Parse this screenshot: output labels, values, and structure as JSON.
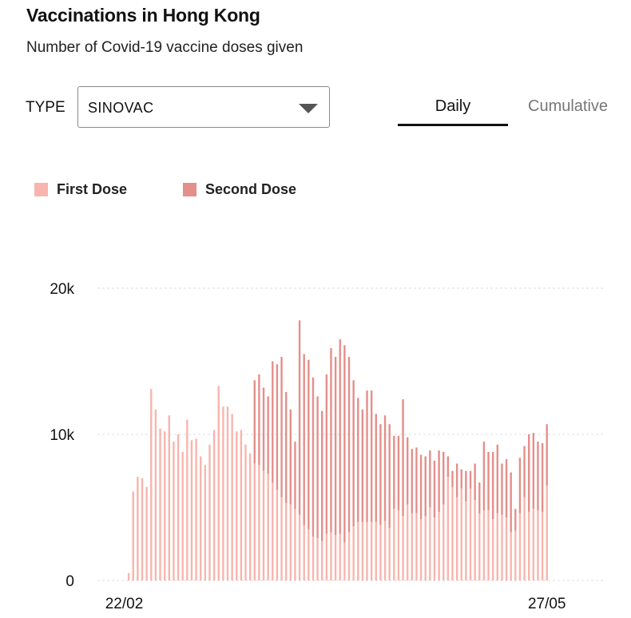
{
  "header": {
    "title": "Vaccinations in Hong Kong",
    "subtitle": "Number of Covid-19 vaccine doses given"
  },
  "filter": {
    "type_label": "TYPE",
    "selected": "SINOVAC"
  },
  "tabs": [
    {
      "label": "Daily",
      "active": true
    },
    {
      "label": "Cumulative",
      "active": false
    }
  ],
  "colors": {
    "first_dose": "#f8b5ad",
    "second_dose": "#e48f8a",
    "grid": "#dddddd"
  },
  "chart_data": {
    "type": "bar",
    "stacked": true,
    "title": "",
    "xlabel": "",
    "ylabel": "",
    "ylim": [
      0,
      20000
    ],
    "yticks": [
      0,
      10000,
      20000
    ],
    "ytick_labels": [
      "0",
      "10k",
      "20k"
    ],
    "x_tick_labels": [
      {
        "label": "22/02",
        "date": "2021-02-22"
      },
      {
        "label": "27/05",
        "date": "2021-05-27"
      }
    ],
    "grid": true,
    "legend_position": "top-left",
    "x": [
      "2021-02-22",
      "2021-02-23",
      "2021-02-24",
      "2021-02-25",
      "2021-02-26",
      "2021-02-27",
      "2021-02-28",
      "2021-03-01",
      "2021-03-02",
      "2021-03-03",
      "2021-03-04",
      "2021-03-05",
      "2021-03-06",
      "2021-03-07",
      "2021-03-08",
      "2021-03-09",
      "2021-03-10",
      "2021-03-11",
      "2021-03-12",
      "2021-03-13",
      "2021-03-14",
      "2021-03-15",
      "2021-03-16",
      "2021-03-17",
      "2021-03-18",
      "2021-03-19",
      "2021-03-20",
      "2021-03-21",
      "2021-03-22",
      "2021-03-23",
      "2021-03-24",
      "2021-03-25",
      "2021-03-26",
      "2021-03-27",
      "2021-03-28",
      "2021-03-29",
      "2021-03-30",
      "2021-03-31",
      "2021-04-01",
      "2021-04-02",
      "2021-04-03",
      "2021-04-04",
      "2021-04-05",
      "2021-04-06",
      "2021-04-07",
      "2021-04-08",
      "2021-04-09",
      "2021-04-10",
      "2021-04-11",
      "2021-04-12",
      "2021-04-13",
      "2021-04-14",
      "2021-04-15",
      "2021-04-16",
      "2021-04-17",
      "2021-04-18",
      "2021-04-19",
      "2021-04-20",
      "2021-04-21",
      "2021-04-22",
      "2021-04-23",
      "2021-04-24",
      "2021-04-25",
      "2021-04-26",
      "2021-04-27",
      "2021-04-28",
      "2021-04-29",
      "2021-04-30",
      "2021-05-01",
      "2021-05-02",
      "2021-05-03",
      "2021-05-04",
      "2021-05-05",
      "2021-05-06",
      "2021-05-07",
      "2021-05-08",
      "2021-05-09",
      "2021-05-10",
      "2021-05-11",
      "2021-05-12",
      "2021-05-13",
      "2021-05-14",
      "2021-05-15",
      "2021-05-16",
      "2021-05-17",
      "2021-05-18",
      "2021-05-19",
      "2021-05-20",
      "2021-05-21",
      "2021-05-22",
      "2021-05-23",
      "2021-05-24",
      "2021-05-25",
      "2021-05-26",
      "2021-05-27"
    ],
    "series": [
      {
        "name": "First Dose",
        "values": [
          0,
          500,
          6100,
          7100,
          7000,
          6400,
          13100,
          11700,
          10400,
          10200,
          11300,
          9500,
          10000,
          8800,
          11000,
          9600,
          9700,
          8500,
          7900,
          9300,
          10300,
          13300,
          11900,
          11900,
          11400,
          10200,
          10300,
          9300,
          8700,
          8000,
          7900,
          7500,
          7300,
          6700,
          6200,
          5700,
          5300,
          5200,
          4900,
          4500,
          3800,
          3500,
          3000,
          2900,
          2700,
          3200,
          3300,
          3100,
          3200,
          2600,
          3300,
          3700,
          4000,
          4000,
          4000,
          4000,
          4000,
          3800,
          4100,
          3600,
          4900,
          4800,
          4400,
          5200,
          4600,
          4600,
          4200,
          4400,
          5000,
          4300,
          4700,
          5200,
          7100,
          6400,
          5700,
          6300,
          5400,
          6300,
          5500,
          4600,
          4800,
          4800,
          4200,
          4600,
          4500,
          4300,
          3300,
          3400,
          4600,
          5700,
          4700,
          4900,
          4800,
          4700,
          6500
        ],
        "totals": [
          0,
          500,
          6100,
          7100,
          7000,
          6400,
          13100,
          11700,
          10400,
          10200,
          11300,
          9500,
          10000,
          8800,
          11000,
          9600,
          9700,
          8500,
          7900,
          9300,
          10300,
          13300,
          11900,
          11900,
          11400,
          10200,
          10300,
          9300,
          8700,
          13700,
          14100,
          13200,
          12600,
          15000,
          14800,
          15300,
          12900,
          11700,
          9500,
          17800,
          15500,
          15100,
          13900,
          12600,
          11600,
          14100,
          15900,
          15300,
          16500,
          16100,
          15300,
          13700,
          12500,
          11700,
          13000,
          13000,
          11400,
          10700,
          11300,
          10700,
          9900,
          9900,
          12400,
          9800,
          9000,
          9100,
          8600,
          8500,
          8900,
          8200,
          8900,
          8800,
          8500,
          7500,
          8000,
          7600,
          7500,
          7500,
          8000,
          6700,
          9500,
          8800,
          8800,
          9300,
          8000,
          8300,
          7400,
          4900,
          8400,
          9200,
          10000,
          10100,
          9500,
          9400,
          10700
        ]
      },
      {
        "name": "Second Dose",
        "values": [
          0,
          0,
          0,
          0,
          0,
          0,
          0,
          0,
          0,
          0,
          0,
          0,
          0,
          0,
          0,
          0,
          0,
          0,
          0,
          0,
          0,
          0,
          0,
          0,
          0,
          0,
          0,
          0,
          0,
          5700,
          6200,
          5700,
          5300,
          8300,
          8600,
          9600,
          7600,
          6500,
          4600,
          13300,
          11700,
          11600,
          10900,
          9700,
          8900,
          10900,
          12600,
          12200,
          13300,
          13500,
          12000,
          10000,
          8500,
          7700,
          9000,
          9000,
          7400,
          6900,
          7200,
          7100,
          5000,
          5100,
          8000,
          4600,
          4400,
          4500,
          4400,
          4100,
          3900,
          3900,
          4200,
          3600,
          1400,
          1100,
          2300,
          1300,
          2100,
          1200,
          2500,
          2100,
          4700,
          4000,
          4600,
          4700,
          3500,
          4000,
          4100,
          1500,
          3800,
          3500,
          5300,
          5200,
          4700,
          4700,
          4200
        ]
      }
    ]
  }
}
